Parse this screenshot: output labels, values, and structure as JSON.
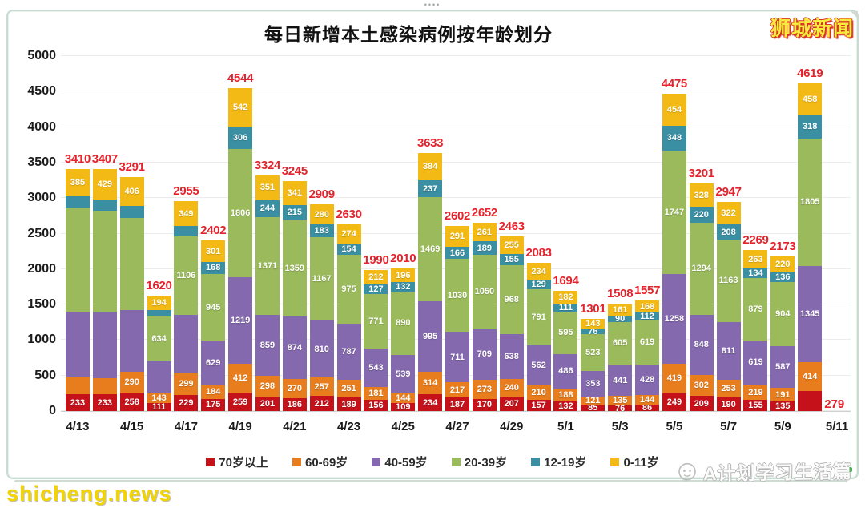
{
  "window": {
    "site_logo": "狮城新闻",
    "watermark_left": "shicheng.news",
    "watermark_right": "A计划学习生活篇"
  },
  "chart_data": {
    "type": "bar",
    "stacked": true,
    "title": "每日新增本土感染病例按年龄划分",
    "xlabel": "",
    "ylabel": "",
    "ylim": [
      0,
      5000
    ],
    "ytick_step": 500,
    "yticks": [
      0,
      500,
      1000,
      1500,
      2000,
      2500,
      3000,
      3500,
      4000,
      4500,
      5000
    ],
    "grid": true,
    "legend_position": "bottom",
    "total_label_color": "#e3242c",
    "series": [
      {
        "name": "70岁以上",
        "color": "#c5121a"
      },
      {
        "name": "60-69岁",
        "color": "#e87d1e"
      },
      {
        "name": "40-59岁",
        "color": "#8569ae"
      },
      {
        "name": "20-39岁",
        "color": "#9aba5c"
      },
      {
        "name": "12-19岁",
        "color": "#3a8fa3"
      },
      {
        "name": "0-11岁",
        "color": "#f3ba16"
      }
    ],
    "xtick_labels": [
      "4/13",
      "4/15",
      "4/17",
      "4/19",
      "4/21",
      "4/23",
      "4/25",
      "4/27",
      "4/29",
      "5/1",
      "5/3",
      "5/5",
      "5/7",
      "5/9",
      "5/11"
    ],
    "n_slots": 29,
    "note": "values order per bar = [70岁以上, 60-69岁, 40-59岁, 20-39岁, 12-19岁, 0-11岁]; segments listed in hide_labels had no printed label in the source image (values there are pixel estimates so the stack sums to the printed total)",
    "bars": [
      {
        "date": "4/13",
        "total": 3410,
        "values": [
          233,
          240,
          930,
          1467,
          155,
          385
        ],
        "hide_labels": [
          1,
          2,
          3,
          4
        ]
      },
      {
        "date": "4/14",
        "total": 3407,
        "values": [
          233,
          235,
          915,
          1440,
          155,
          429
        ],
        "hide_labels": [
          1,
          2,
          3,
          4
        ]
      },
      {
        "date": "4/15",
        "total": 3291,
        "values": [
          258,
          290,
          877,
          1290,
          170,
          406
        ],
        "hide_labels": [
          2,
          3,
          4
        ]
      },
      {
        "date": "4/16",
        "total": 1620,
        "values": [
          111,
          143,
          448,
          634,
          90,
          194
        ],
        "hide_labels": [
          2,
          4
        ]
      },
      {
        "date": "4/17",
        "total": 2955,
        "values": [
          229,
          299,
          832,
          1106,
          140,
          349
        ],
        "hide_labels": [
          2,
          4
        ]
      },
      {
        "date": "4/18",
        "total": 2402,
        "values": [
          175,
          184,
          629,
          945,
          168,
          301
        ],
        "hide_labels": []
      },
      {
        "date": "4/19",
        "total": 4544,
        "values": [
          259,
          412,
          1219,
          1806,
          306,
          542
        ],
        "hide_labels": []
      },
      {
        "date": "4/20",
        "total": 3324,
        "values": [
          201,
          298,
          859,
          1371,
          244,
          351
        ],
        "hide_labels": []
      },
      {
        "date": "4/21",
        "total": 3245,
        "values": [
          186,
          270,
          874,
          1359,
          215,
          341
        ],
        "hide_labels": []
      },
      {
        "date": "4/22",
        "total": 2909,
        "values": [
          212,
          257,
          810,
          1167,
          183,
          280
        ],
        "hide_labels": []
      },
      {
        "date": "4/23",
        "total": 2630,
        "values": [
          189,
          251,
          787,
          975,
          154,
          274
        ],
        "hide_labels": []
      },
      {
        "date": "4/24",
        "total": 1990,
        "values": [
          156,
          181,
          543,
          771,
          127,
          212
        ],
        "hide_labels": []
      },
      {
        "date": "4/25",
        "total": 2010,
        "values": [
          109,
          144,
          539,
          890,
          132,
          196
        ],
        "hide_labels": []
      },
      {
        "date": "4/26",
        "total": 3633,
        "values": [
          234,
          314,
          995,
          1469,
          237,
          384
        ],
        "hide_labels": []
      },
      {
        "date": "4/27",
        "total": 2602,
        "values": [
          187,
          217,
          711,
          1030,
          166,
          291
        ],
        "hide_labels": []
      },
      {
        "date": "4/28",
        "total": 2652,
        "values": [
          170,
          273,
          709,
          1050,
          189,
          261
        ],
        "hide_labels": []
      },
      {
        "date": "4/29",
        "total": 2463,
        "values": [
          207,
          240,
          638,
          968,
          155,
          255
        ],
        "hide_labels": []
      },
      {
        "date": "4/30",
        "total": 2083,
        "values": [
          157,
          210,
          562,
          791,
          129,
          234
        ],
        "hide_labels": []
      },
      {
        "date": "5/1",
        "total": 1694,
        "values": [
          132,
          188,
          486,
          595,
          111,
          182
        ],
        "hide_labels": []
      },
      {
        "date": "5/2",
        "total": 1301,
        "values": [
          85,
          121,
          353,
          523,
          76,
          143
        ],
        "hide_labels": []
      },
      {
        "date": "5/3",
        "total": 1508,
        "values": [
          76,
          135,
          441,
          605,
          90,
          161
        ],
        "hide_labels": []
      },
      {
        "date": "5/4",
        "total": 1557,
        "values": [
          86,
          144,
          428,
          619,
          112,
          168
        ],
        "hide_labels": []
      },
      {
        "date": "5/5",
        "total": 4475,
        "values": [
          249,
          419,
          1258,
          1747,
          348,
          454
        ],
        "hide_labels": []
      },
      {
        "date": "5/6",
        "total": 3201,
        "values": [
          209,
          302,
          848,
          1294,
          220,
          328
        ],
        "hide_labels": []
      },
      {
        "date": "5/7",
        "total": 2947,
        "values": [
          190,
          253,
          811,
          1163,
          208,
          322
        ],
        "hide_labels": []
      },
      {
        "date": "5/8",
        "total": 2269,
        "values": [
          155,
          219,
          619,
          879,
          134,
          263
        ],
        "hide_labels": []
      },
      {
        "date": "5/9",
        "total": 2173,
        "values": [
          135,
          191,
          587,
          904,
          136,
          220
        ],
        "hide_labels": []
      },
      {
        "date": "5/10",
        "total": 4619,
        "values": [
          279,
          414,
          1345,
          1805,
          318,
          458
        ],
        "hide_labels": [
          0
        ],
        "outside_label": "279"
      }
    ]
  }
}
